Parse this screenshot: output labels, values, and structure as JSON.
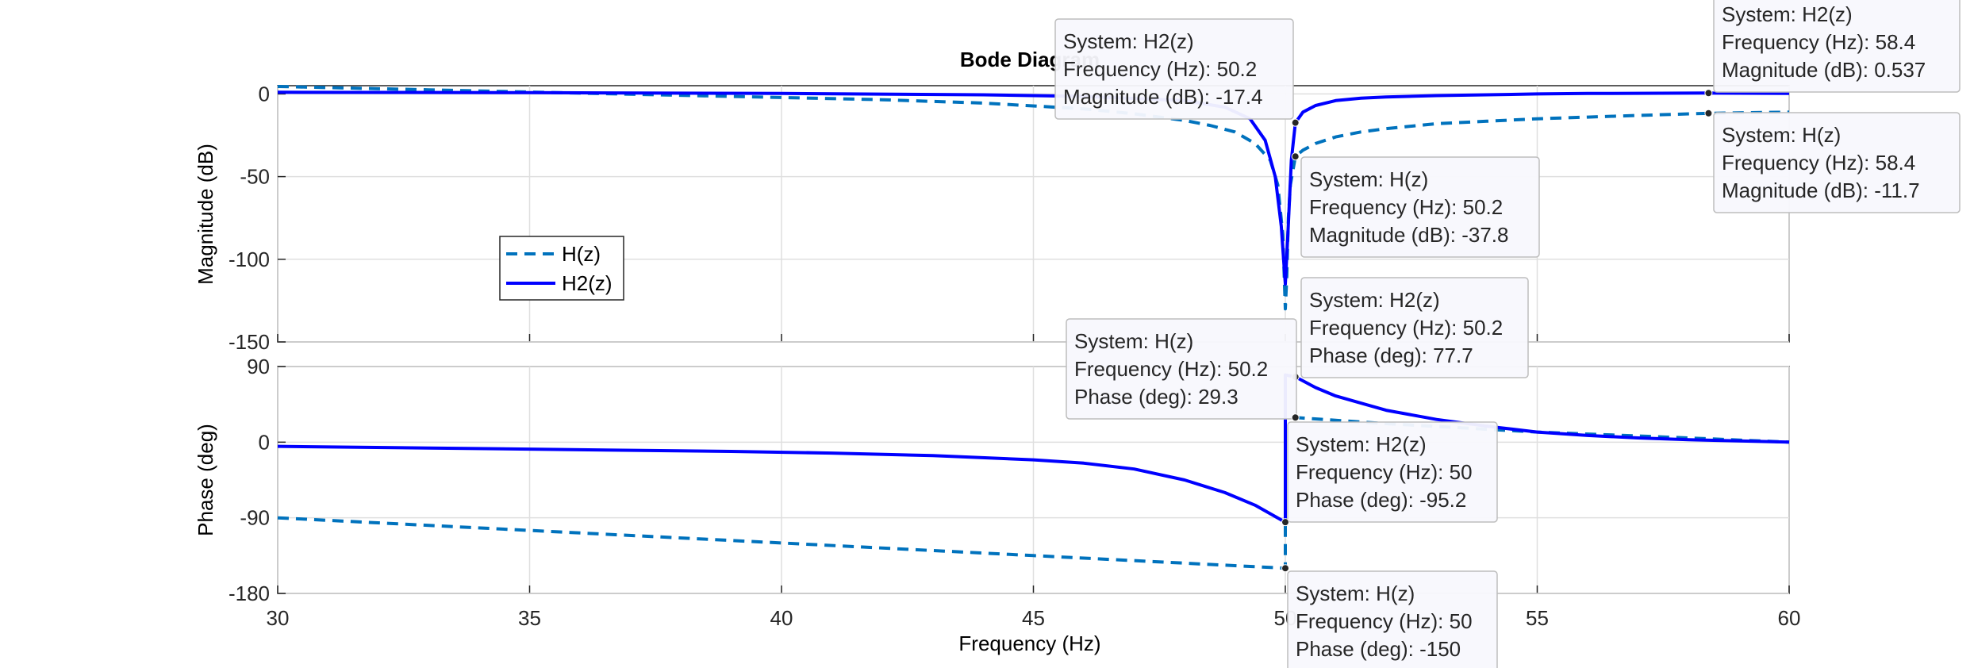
{
  "figure": {
    "title": "Bode Diagram",
    "xlabel": "Frequency  (Hz)",
    "x_ticks": [
      "30",
      "35",
      "40",
      "45",
      "50",
      "55",
      "60"
    ],
    "legend": [
      {
        "label": "H(z)",
        "style": "dashed",
        "color": "#0072BD"
      },
      {
        "label": "H2(z)",
        "style": "solid",
        "color": "#0000FF"
      }
    ]
  },
  "chart_data": [
    {
      "type": "line",
      "title": "Bode Diagram",
      "xlabel": "Frequency  (Hz)",
      "ylabel": "Magnitude (dB)",
      "xlim": [
        30,
        60
      ],
      "ylim": [
        -150,
        5
      ],
      "x_ticks": [
        30,
        35,
        40,
        45,
        50,
        55,
        60
      ],
      "y_ticks": [
        0,
        -50,
        -100,
        -150
      ],
      "grid": true,
      "legend_position": "left",
      "series": [
        {
          "name": "H(z)",
          "style": "dashed",
          "color": "#0072BD",
          "x": [
            30,
            33,
            36,
            39,
            42,
            44,
            46,
            47,
            48,
            48.5,
            49,
            49.4,
            49.7,
            49.85,
            49.95,
            50.0,
            50.03,
            50.06,
            50.1,
            50.2,
            50.35,
            50.6,
            51,
            51.5,
            52,
            53,
            54,
            55,
            56,
            57,
            58.4,
            60
          ],
          "y": [
            4.5,
            2.5,
            0.5,
            -1.5,
            -3.5,
            -5.5,
            -9,
            -12,
            -16,
            -19,
            -23,
            -30,
            -40,
            -55,
            -85,
            -130,
            -110,
            -75,
            -55,
            -37.8,
            -34,
            -30,
            -26,
            -23,
            -21,
            -18,
            -16.5,
            -15,
            -14,
            -13,
            -11.7,
            -11
          ]
        },
        {
          "name": "H2(z)",
          "style": "solid",
          "color": "#0000FF",
          "x": [
            30,
            35,
            40,
            44,
            46,
            48,
            48.8,
            49.3,
            49.6,
            49.8,
            49.92,
            50.0,
            50.05,
            50.12,
            50.2,
            50.35,
            50.6,
            51,
            51.5,
            52,
            53,
            54,
            55,
            56,
            58.4,
            60
          ],
          "y": [
            1,
            0.8,
            0.3,
            -0.5,
            -1.5,
            -4,
            -8,
            -15,
            -28,
            -50,
            -80,
            -115,
            -85,
            -40,
            -17.4,
            -11,
            -7,
            -4,
            -2.6,
            -1.8,
            -1,
            -0.5,
            0,
            0.3,
            0.537,
            0.3
          ]
        }
      ],
      "datatips": [
        {
          "system": "H2(z)",
          "freq": "50.2",
          "value": "-17.4",
          "x": 50.2,
          "y": -17.4,
          "label_kind": "Magnitude (dB)"
        },
        {
          "system": "H(z)",
          "freq": "50.2",
          "value": "-37.8",
          "x": 50.2,
          "y": -37.8,
          "label_kind": "Magnitude (dB)"
        },
        {
          "system": "H2(z)",
          "freq": "58.4",
          "value": "0.537",
          "x": 58.4,
          "y": 0.537,
          "label_kind": "Magnitude (dB)"
        },
        {
          "system": "H(z)",
          "freq": "58.4",
          "value": "-11.7",
          "x": 58.4,
          "y": -11.7,
          "label_kind": "Magnitude (dB)"
        }
      ]
    },
    {
      "type": "line",
      "xlabel": "Frequency  (Hz)",
      "ylabel": "Phase (deg)",
      "xlim": [
        30,
        60
      ],
      "ylim": [
        -180,
        90
      ],
      "x_ticks": [
        30,
        35,
        40,
        45,
        50,
        55,
        60
      ],
      "y_ticks": [
        90,
        0,
        -90,
        -180
      ],
      "grid": true,
      "series": [
        {
          "name": "H(z)",
          "style": "dashed",
          "color": "#0072BD",
          "x": [
            30,
            35,
            40,
            45,
            50,
            50.0001,
            50.2,
            52,
            55,
            58,
            60
          ],
          "y": [
            -90,
            -105,
            -120,
            -135,
            -150,
            29.3,
            29.3,
            22,
            12,
            5,
            0
          ]
        },
        {
          "name": "H2(z)",
          "style": "solid",
          "color": "#0000FF",
          "x": [
            30,
            33,
            36,
            39,
            41,
            43,
            45,
            46,
            47,
            48,
            48.8,
            49.4,
            50,
            50.0001,
            50.2,
            50.6,
            51,
            52,
            53,
            54,
            55,
            56,
            57,
            58,
            60
          ],
          "y": [
            -5,
            -7,
            -9,
            -11,
            -13,
            -16,
            -21,
            -25,
            -32,
            -45,
            -60,
            -75,
            -95.2,
            80,
            77.7,
            65,
            55,
            38,
            27,
            19,
            12,
            8,
            5,
            3,
            0
          ]
        }
      ],
      "datatips": [
        {
          "system": "H2(z)",
          "freq": "50.2",
          "value": "77.7",
          "x": 50.2,
          "y": 77.7,
          "label_kind": "Phase (deg)"
        },
        {
          "system": "H(z)",
          "freq": "50.2",
          "value": "29.3",
          "x": 50.2,
          "y": 29.3,
          "label_kind": "Phase (deg)"
        },
        {
          "system": "H2(z)",
          "freq": "50",
          "value": "-95.2",
          "x": 50,
          "y": -95.2,
          "label_kind": "Phase (deg)"
        },
        {
          "system": "H(z)",
          "freq": "50",
          "value": "-150",
          "x": 50,
          "y": -150,
          "label_kind": "Phase (deg)"
        }
      ]
    }
  ]
}
